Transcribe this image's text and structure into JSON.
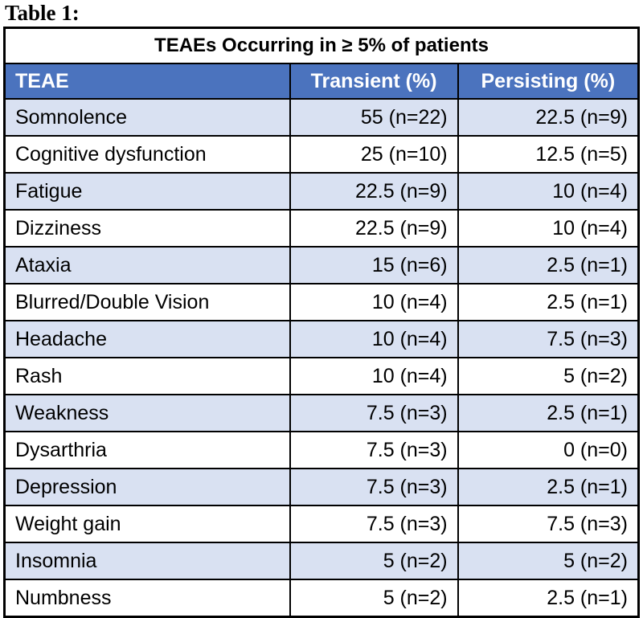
{
  "page_title": "Table 1:",
  "colors": {
    "header_bg": "#4b73be",
    "alt_row_bg": "#d9e1f2",
    "border": "#000000",
    "header_text": "#ffffff"
  },
  "table": {
    "caption": "TEAEs Occurring in ≥ 5% of patients",
    "columns": [
      "TEAE",
      "Transient (%)",
      "Persisting (%)"
    ],
    "rows": [
      {
        "teae": "Somnolence",
        "transient": "55 (n=22)",
        "persisting": "22.5 (n=9)"
      },
      {
        "teae": "Cognitive dysfunction",
        "transient": "25 (n=10)",
        "persisting": "12.5 (n=5)"
      },
      {
        "teae": "Fatigue",
        "transient": "22.5 (n=9)",
        "persisting": "10 (n=4)"
      },
      {
        "teae": "Dizziness",
        "transient": "22.5 (n=9)",
        "persisting": "10 (n=4)"
      },
      {
        "teae": "Ataxia",
        "transient": "15 (n=6)",
        "persisting": "2.5 (n=1)"
      },
      {
        "teae": "Blurred/Double Vision",
        "transient": "10 (n=4)",
        "persisting": "2.5 (n=1)"
      },
      {
        "teae": "Headache",
        "transient": "10 (n=4)",
        "persisting": "7.5 (n=3)"
      },
      {
        "teae": "Rash",
        "transient": "10 (n=4)",
        "persisting": "5 (n=2)"
      },
      {
        "teae": "Weakness",
        "transient": "7.5 (n=3)",
        "persisting": "2.5 (n=1)"
      },
      {
        "teae": "Dysarthria",
        "transient": "7.5 (n=3)",
        "persisting": "0 (n=0)"
      },
      {
        "teae": "Depression",
        "transient": "7.5 (n=3)",
        "persisting": "2.5 (n=1)"
      },
      {
        "teae": "Weight gain",
        "transient": "7.5 (n=3)",
        "persisting": "7.5 (n=3)"
      },
      {
        "teae": "Insomnia",
        "transient": "5 (n=2)",
        "persisting": "5 (n=2)"
      },
      {
        "teae": "Numbness",
        "transient": "5 (n=2)",
        "persisting": "2.5 (n=1)"
      }
    ]
  }
}
